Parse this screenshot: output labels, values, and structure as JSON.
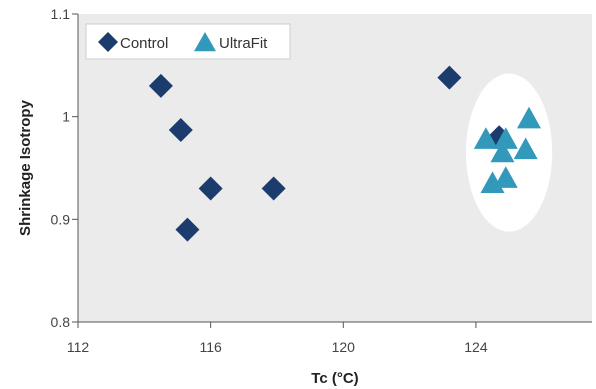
{
  "chart_data": {
    "type": "scatter",
    "xlabel": "Tc (°C)",
    "ylabel": "Shrinkage Isotropy",
    "xlim": [
      112,
      127.5
    ],
    "ylim": [
      0.8,
      1.1
    ],
    "x_ticks": [
      "112",
      "116",
      "120",
      "124"
    ],
    "x_tick_values": [
      112,
      116,
      120,
      124
    ],
    "y_ticks": [
      "0.8",
      "0.9",
      "1",
      "1.1"
    ],
    "y_tick_values": [
      0.8,
      0.9,
      1.0,
      1.1
    ],
    "grid": false,
    "legend_position": "top-left",
    "plot_background": "#ebebeb",
    "series": [
      {
        "name": "Control",
        "marker": "diamond",
        "color": "#1d3c6e",
        "points": [
          {
            "x": 114.5,
            "y": 1.03
          },
          {
            "x": 115.1,
            "y": 0.987
          },
          {
            "x": 116.0,
            "y": 0.93
          },
          {
            "x": 115.3,
            "y": 0.89
          },
          {
            "x": 117.9,
            "y": 0.93
          },
          {
            "x": 123.2,
            "y": 1.038
          },
          {
            "x": 124.7,
            "y": 0.98
          }
        ]
      },
      {
        "name": "UltraFit",
        "marker": "triangle",
        "color": "#3399bb",
        "points": [
          {
            "x": 124.3,
            "y": 0.978
          },
          {
            "x": 124.9,
            "y": 0.978
          },
          {
            "x": 125.6,
            "y": 0.998
          },
          {
            "x": 124.8,
            "y": 0.965
          },
          {
            "x": 125.5,
            "y": 0.968
          },
          {
            "x": 124.9,
            "y": 0.94
          },
          {
            "x": 124.5,
            "y": 0.935
          }
        ]
      }
    ],
    "highlight_ellipse": {
      "cx": 125.0,
      "cy": 0.965,
      "rx": 1.3,
      "ry": 0.077,
      "color": "#ffffff"
    }
  }
}
